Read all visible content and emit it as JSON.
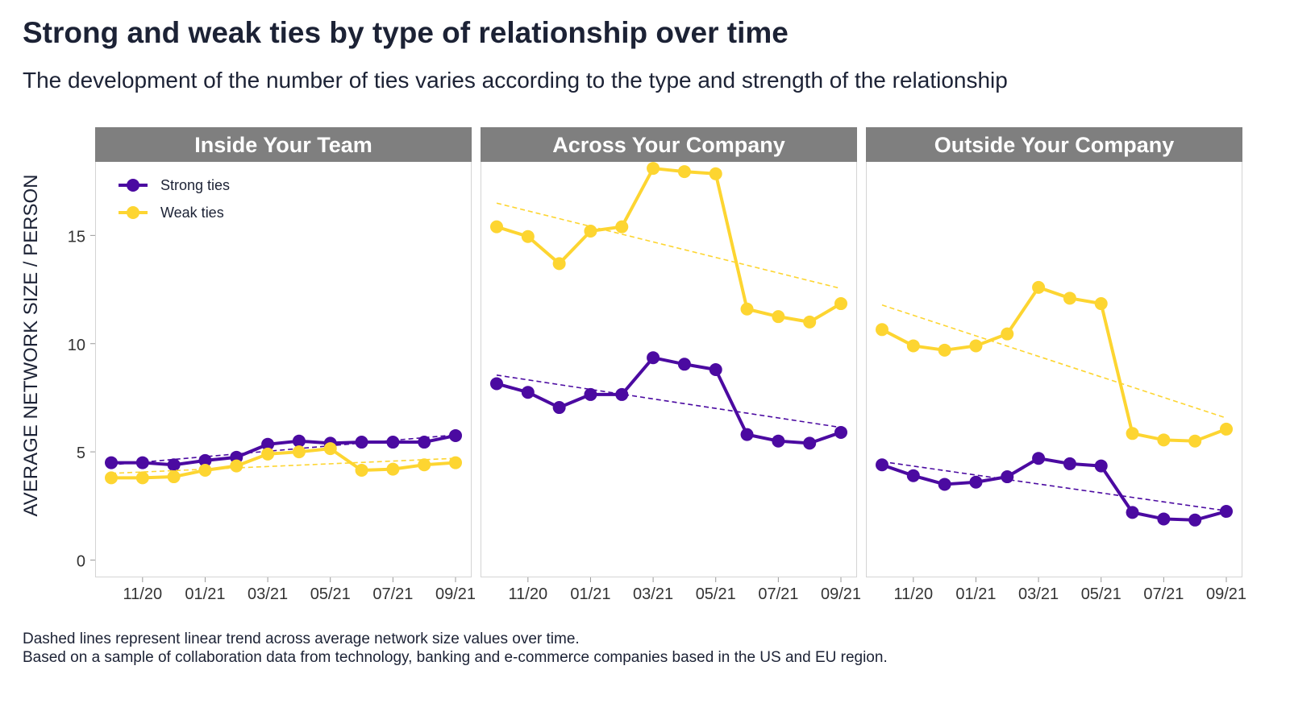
{
  "title": "Strong and weak ties by type of relationship over time",
  "subtitle": "The development of the number of ties varies according to the type and strength of the relationship",
  "caption": [
    "Dashed lines represent linear trend across average network size values over time.",
    "Based on a sample of collaboration data from technology, banking and e-commerce companies based in the US and EU region."
  ],
  "colors": {
    "strong": "#4b0aa1",
    "weak": "#fdd531",
    "strip_bg": "#7f7f7f",
    "strip_text": "#ffffff",
    "panel_border": "#d4d4d4"
  },
  "chart_data": {
    "type": "line",
    "ylabel": "AVERAGE NETWORK SIZE / PERSON",
    "ylim": [
      -0.8,
      18.4
    ],
    "yticks": [
      0,
      5,
      10,
      15
    ],
    "x": [
      "10/20",
      "11/20",
      "12/20",
      "01/21",
      "02/21",
      "03/21",
      "04/21",
      "05/21",
      "06/21",
      "07/21",
      "08/21",
      "09/21"
    ],
    "xtick_labels": [
      "11/20",
      "01/21",
      "03/21",
      "05/21",
      "07/21",
      "09/21"
    ],
    "legend": {
      "position": "top-left",
      "entries": [
        "Strong ties",
        "Weak ties"
      ]
    },
    "trend_note": "dashed linear trend per series",
    "panels": [
      {
        "name": "Inside Your Team",
        "series": [
          {
            "name": "Strong ties",
            "values": [
              4.5,
              4.5,
              4.4,
              4.6,
              4.75,
              5.35,
              5.5,
              5.4,
              5.45,
              5.45,
              5.45,
              5.75
            ]
          },
          {
            "name": "Weak ties",
            "values": [
              3.8,
              3.8,
              3.85,
              4.15,
              4.35,
              4.9,
              5.0,
              5.15,
              4.15,
              4.2,
              4.4,
              4.5
            ]
          }
        ]
      },
      {
        "name": "Across Your Company",
        "series": [
          {
            "name": "Strong ties",
            "values": [
              8.15,
              7.75,
              7.05,
              7.65,
              7.65,
              9.35,
              9.05,
              8.8,
              5.8,
              5.5,
              5.4,
              5.9
            ]
          },
          {
            "name": "Weak ties",
            "values": [
              15.4,
              14.95,
              13.7,
              15.2,
              15.4,
              18.1,
              17.95,
              17.85,
              11.6,
              11.25,
              11.0,
              11.85
            ]
          }
        ]
      },
      {
        "name": "Outside Your Company",
        "series": [
          {
            "name": "Strong ties",
            "values": [
              4.4,
              3.9,
              3.5,
              3.6,
              3.85,
              4.7,
              4.45,
              4.35,
              2.2,
              1.9,
              1.85,
              2.25
            ]
          },
          {
            "name": "Weak ties",
            "values": [
              10.65,
              9.9,
              9.7,
              9.9,
              10.45,
              12.6,
              12.1,
              11.85,
              5.85,
              5.55,
              5.5,
              6.05
            ]
          }
        ]
      }
    ]
  }
}
